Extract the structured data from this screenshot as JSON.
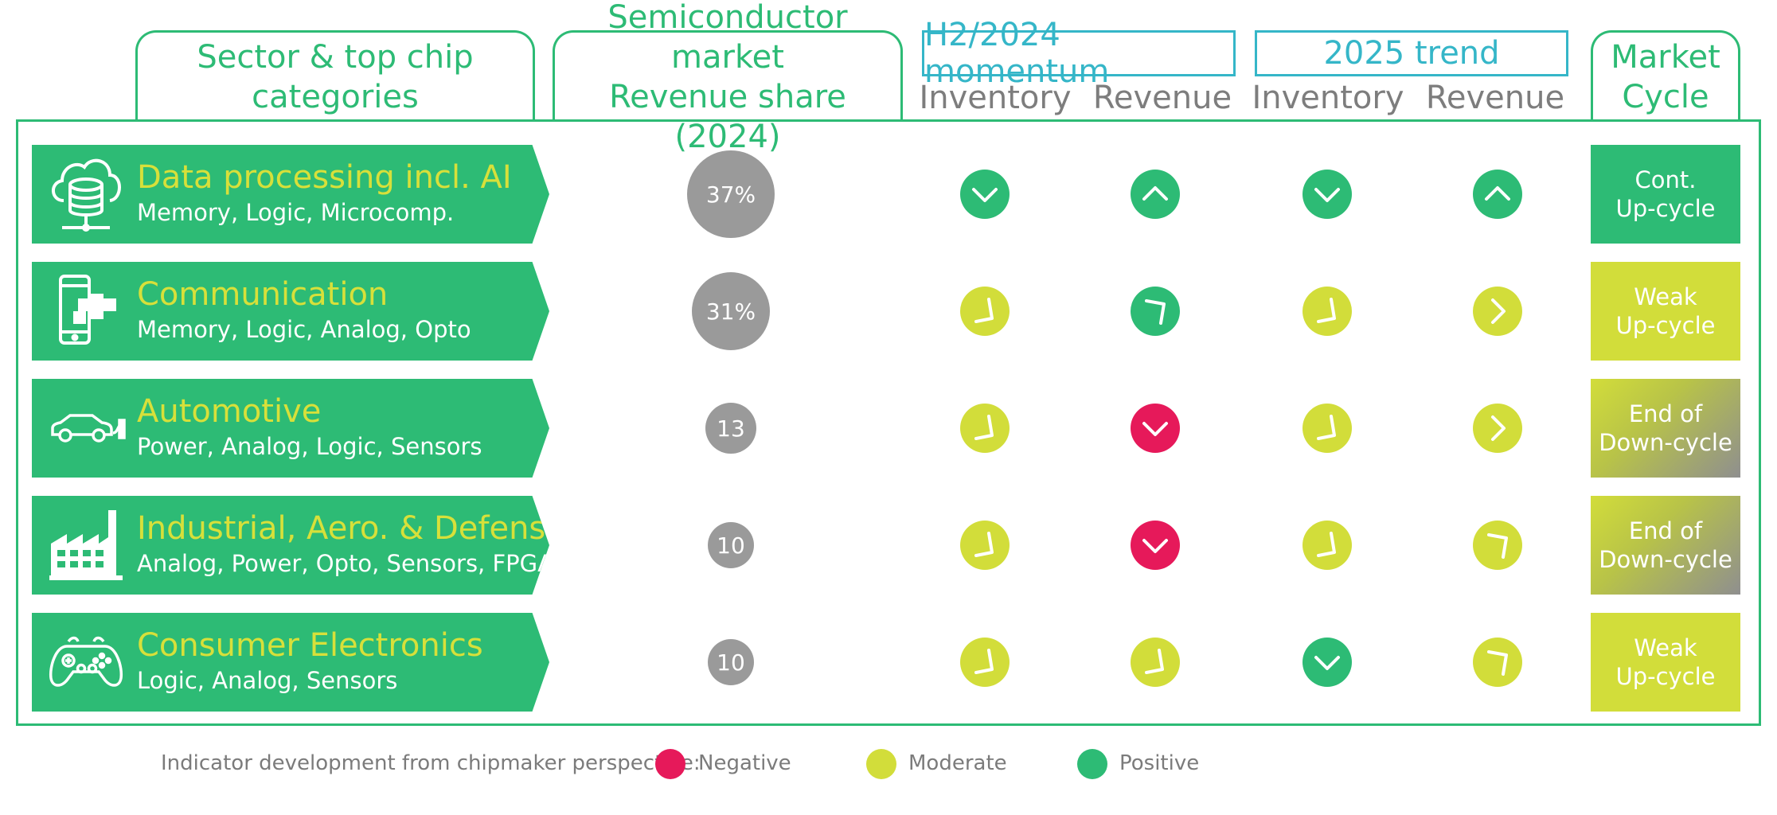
{
  "colors": {
    "positive": "#2dbb75",
    "moderate": "#d2dd3a",
    "negative": "#e6195a",
    "share_bubble": "#9a9a9a",
    "header_teal": "#35b6c8",
    "sector_title": "#d7e03a"
  },
  "header": {
    "sector_col": [
      "Sector & top chip",
      "categories"
    ],
    "share_col": [
      "Semiconductor market",
      "Revenue share (2024)"
    ],
    "h2_2024": "H2/2024 momentum",
    "trend_2025": "2025 trend",
    "inventory": "Inventory",
    "revenue": "Revenue",
    "cycle_col": [
      "Market",
      "Cycle"
    ]
  },
  "rows": [
    {
      "title": "Data processing incl. AI",
      "sub": "Memory, Logic, Microcomp.",
      "icon": "cloud-database-icon",
      "share": "37%",
      "share_value": 37,
      "h2_inventory": {
        "level": "positive",
        "arrow": "down"
      },
      "h2_revenue": {
        "level": "positive",
        "arrow": "up"
      },
      "t25_inventory": {
        "level": "positive",
        "arrow": "down"
      },
      "t25_revenue": {
        "level": "positive",
        "arrow": "up"
      },
      "cycle": [
        "Cont.",
        "Up-cycle"
      ],
      "cycle_style": "positive"
    },
    {
      "title": "Communication",
      "sub": "Memory, Logic, Analog, Opto",
      "icon": "smartphone-network-icon",
      "share": "31%",
      "share_value": 31,
      "h2_inventory": {
        "level": "moderate",
        "arrow": "down-right"
      },
      "h2_revenue": {
        "level": "positive",
        "arrow": "up-right"
      },
      "t25_inventory": {
        "level": "moderate",
        "arrow": "down-right"
      },
      "t25_revenue": {
        "level": "moderate",
        "arrow": "right"
      },
      "cycle": [
        "Weak",
        "Up-cycle"
      ],
      "cycle_style": "moderate"
    },
    {
      "title": "Automotive",
      "sub": "Power, Analog, Logic, Sensors",
      "icon": "electric-car-icon",
      "share": "13",
      "share_value": 13,
      "h2_inventory": {
        "level": "moderate",
        "arrow": "down-right"
      },
      "h2_revenue": {
        "level": "negative",
        "arrow": "down"
      },
      "t25_inventory": {
        "level": "moderate",
        "arrow": "down-right"
      },
      "t25_revenue": {
        "level": "moderate",
        "arrow": "right"
      },
      "cycle": [
        "End of",
        "Down-cycle"
      ],
      "cycle_style": "gradient"
    },
    {
      "title": "Industrial, Aero. & Defense",
      "sub": "Analog, Power, Opto, Sensors, FPGA",
      "icon": "factory-icon",
      "share": "10",
      "share_value": 10,
      "h2_inventory": {
        "level": "moderate",
        "arrow": "down-right"
      },
      "h2_revenue": {
        "level": "negative",
        "arrow": "down"
      },
      "t25_inventory": {
        "level": "moderate",
        "arrow": "down-right"
      },
      "t25_revenue": {
        "level": "moderate",
        "arrow": "up-right"
      },
      "cycle": [
        "End of",
        "Down-cycle"
      ],
      "cycle_style": "gradient"
    },
    {
      "title": "Consumer Electronics",
      "sub": "Logic, Analog, Sensors",
      "icon": "gamepad-icon",
      "share": "10",
      "share_value": 10,
      "h2_inventory": {
        "level": "moderate",
        "arrow": "down-right"
      },
      "h2_revenue": {
        "level": "moderate",
        "arrow": "down-right"
      },
      "t25_inventory": {
        "level": "positive",
        "arrow": "down"
      },
      "t25_revenue": {
        "level": "moderate",
        "arrow": "up-right"
      },
      "cycle": [
        "Weak",
        "Up-cycle"
      ],
      "cycle_style": "moderate"
    }
  ],
  "legend": {
    "label": "Indicator development from chipmaker perspective:",
    "negative": "Negative",
    "moderate": "Moderate",
    "positive": "Positive"
  }
}
